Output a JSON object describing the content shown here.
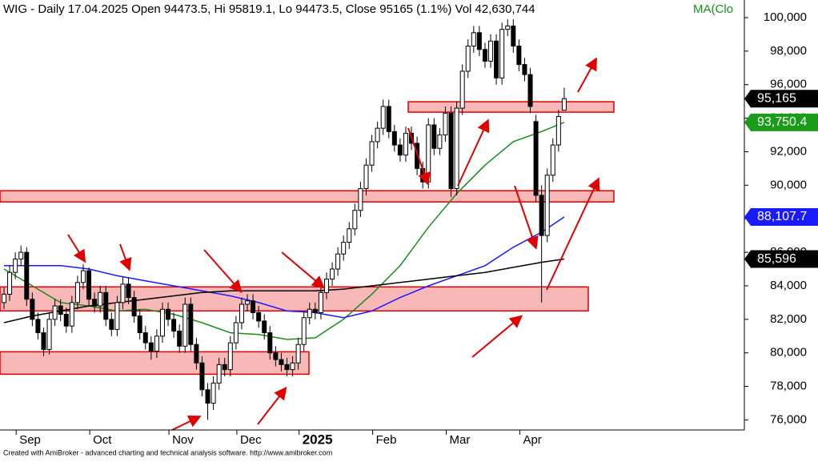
{
  "chart_data": {
    "type": "candlestick",
    "title": "WIG - Daily 17.04.2025 Open 94473.5, Hi 95819.1, Lo 94473.5, Close 95165 (1.1%) Vol 42,630,744",
    "legend_text": "MA(Clo",
    "footer": "Created with AmiBroker - advanced charting and technical analysis software. http://www.amibroker.com",
    "categories": [
      null,
      null,
      null,
      "Sep",
      null,
      null,
      null,
      null,
      null,
      null,
      null,
      null,
      null,
      null,
      null,
      null,
      "Oct",
      null,
      null,
      null,
      null,
      null,
      null,
      null,
      null,
      null,
      null,
      null,
      null,
      null,
      "Nov",
      null,
      null,
      null,
      null,
      null,
      null,
      null,
      null,
      null,
      null,
      null,
      "Dec",
      null,
      null,
      null,
      null,
      null,
      null,
      null,
      null,
      null,
      null,
      "2025",
      null,
      null,
      null,
      null,
      null,
      null,
      null,
      null,
      null,
      null,
      null,
      null,
      "Feb",
      null,
      null,
      null,
      null,
      null,
      null,
      null,
      null,
      null,
      null,
      null,
      null,
      "Mar",
      null,
      null,
      null,
      null,
      null,
      null,
      null,
      null,
      null,
      null,
      null,
      null,
      "Apr",
      null,
      null,
      null,
      null,
      null,
      null,
      null
    ],
    "open": [
      83000,
      83500,
      84800,
      85600,
      86000,
      83200,
      82000,
      81200,
      80200,
      82000,
      82800,
      82300,
      81600,
      83000,
      84200,
      84900,
      83200,
      82800,
      83600,
      82000,
      81400,
      83000,
      84100,
      83300,
      82200,
      81200,
      80600,
      80100,
      81000,
      82600,
      82000,
      81300,
      80400,
      82900,
      80500,
      79400,
      77800,
      77000,
      78200,
      79300,
      79000,
      80600,
      81800,
      82900,
      83100,
      82400,
      81900,
      81200,
      80000,
      79600,
      79300,
      79000,
      79400,
      80500,
      82100,
      82600,
      82400,
      83600,
      84400,
      85000,
      85900,
      86600,
      87400,
      88500,
      89800,
      91200,
      92600,
      93400,
      94700,
      93200,
      92400,
      91800,
      93100,
      92500,
      91000,
      90200,
      93600,
      92200,
      93000,
      94300,
      89800,
      94600,
      96800,
      98300,
      99100,
      98100,
      97400,
      98600,
      96400,
      99300,
      99500,
      98300,
      97200,
      96600,
      93800,
      89400,
      87000,
      90600,
      92400,
      94473.5
    ],
    "high": [
      83900,
      85200,
      86000,
      86400,
      86300,
      83600,
      82400,
      81500,
      82400,
      83200,
      83200,
      82700,
      83400,
      84600,
      85300,
      85100,
      83600,
      84000,
      84000,
      82400,
      83400,
      84500,
      84500,
      83700,
      82600,
      81600,
      81000,
      81400,
      83000,
      83000,
      82400,
      81700,
      83300,
      83300,
      80900,
      79800,
      78200,
      78600,
      79700,
      79700,
      81000,
      82200,
      83300,
      83500,
      83500,
      82800,
      82300,
      81600,
      80400,
      80000,
      79700,
      79800,
      80900,
      82500,
      83000,
      83000,
      84000,
      84800,
      85400,
      86300,
      87000,
      87800,
      88900,
      90200,
      91600,
      93000,
      93800,
      95100,
      95100,
      93600,
      92800,
      93500,
      93500,
      92900,
      91400,
      94000,
      94000,
      93400,
      94700,
      94700,
      95000,
      97200,
      98700,
      99500,
      99500,
      98500,
      99000,
      99000,
      99700,
      99900,
      99900,
      98700,
      97600,
      97000,
      94200,
      90000,
      91000,
      92800,
      94500,
      95819.1
    ],
    "low": [
      82600,
      83100,
      84400,
      85200,
      82800,
      81600,
      80800,
      79800,
      79900,
      81600,
      81900,
      81200,
      81200,
      82600,
      83800,
      82800,
      82400,
      82400,
      81600,
      81000,
      81000,
      82600,
      82900,
      81800,
      80800,
      80200,
      79600,
      79700,
      80600,
      81600,
      80900,
      80000,
      80000,
      80100,
      79000,
      77400,
      76000,
      76600,
      77800,
      78600,
      78600,
      80200,
      81400,
      82500,
      82000,
      81500,
      80800,
      79600,
      79200,
      78900,
      78600,
      78600,
      79000,
      80100,
      81700,
      82000,
      82000,
      83200,
      84000,
      84600,
      85500,
      86200,
      87000,
      88100,
      89400,
      90800,
      92200,
      93000,
      92800,
      92000,
      91400,
      91400,
      92100,
      90600,
      89800,
      89800,
      91800,
      91800,
      92600,
      89300,
      89400,
      94200,
      96400,
      97900,
      97700,
      97000,
      97000,
      96000,
      96000,
      98900,
      97900,
      96800,
      96200,
      94300,
      89000,
      83000,
      86600,
      90200,
      92000,
      94473.5
    ],
    "close": [
      83500,
      84800,
      85600,
      86000,
      83200,
      82000,
      81200,
      80200,
      82000,
      82800,
      82300,
      81600,
      83000,
      84200,
      84900,
      83200,
      82800,
      83600,
      82000,
      81400,
      83000,
      84100,
      83300,
      82200,
      81200,
      80600,
      80100,
      81000,
      82600,
      82000,
      81300,
      80400,
      82900,
      80500,
      79400,
      77800,
      77000,
      78200,
      79300,
      79000,
      80600,
      81800,
      82900,
      83100,
      82400,
      81900,
      81200,
      80000,
      79600,
      79300,
      79000,
      79400,
      80500,
      82100,
      82600,
      82400,
      83600,
      84400,
      85000,
      85900,
      86600,
      87400,
      88500,
      89800,
      91200,
      92600,
      93400,
      94700,
      93200,
      92400,
      91800,
      93100,
      92500,
      91000,
      90200,
      93600,
      92200,
      93000,
      94300,
      89800,
      94600,
      96800,
      98300,
      99100,
      98100,
      97400,
      98600,
      96400,
      99300,
      99500,
      98300,
      97200,
      96600,
      94700,
      89400,
      87000,
      90600,
      92400,
      94100,
      95165
    ],
    "last_price_label": "95,165",
    "series": [
      {
        "name": "MA green",
        "color": "#1a8c1a",
        "x": [
          0,
          5,
          10,
          15,
          20,
          25,
          30,
          35,
          40,
          45,
          50,
          55,
          60,
          65,
          70,
          75,
          80,
          85,
          90,
          95,
          99
        ],
        "values": [
          85000,
          84000,
          83000,
          82800,
          82500,
          82600,
          82300,
          81800,
          81200,
          81100,
          80800,
          80900,
          82000,
          83500,
          85200,
          87500,
          89500,
          91200,
          92600,
          93200,
          93750.4
        ],
        "value_label": "93,750.4"
      },
      {
        "name": "MA blue",
        "color": "#1a1aff",
        "x": [
          0,
          5,
          10,
          15,
          20,
          25,
          30,
          35,
          40,
          45,
          50,
          55,
          60,
          65,
          70,
          75,
          80,
          85,
          90,
          95,
          99
        ],
        "values": [
          85200,
          85200,
          85200,
          85000,
          84600,
          84300,
          84000,
          83700,
          83400,
          83000,
          82500,
          82400,
          82100,
          82500,
          83300,
          84000,
          84600,
          85200,
          86300,
          87200,
          88107.7
        ],
        "value_label": "88,107.7"
      },
      {
        "name": "MA black",
        "color": "#000000",
        "x": [
          0,
          5,
          10,
          15,
          20,
          25,
          30,
          35,
          40,
          45,
          50,
          55,
          60,
          65,
          70,
          75,
          80,
          85,
          90,
          95,
          99
        ],
        "values": [
          81800,
          82200,
          82500,
          82800,
          83000,
          83200,
          83400,
          83600,
          83700,
          83700,
          83700,
          83700,
          83800,
          84000,
          84200,
          84400,
          84600,
          84800,
          85100,
          85400,
          85596
        ],
        "value_label": "85,596"
      }
    ],
    "zones": [
      [
        78725,
        80064
      ],
      [
        82502,
        83936
      ],
      [
        89004,
        89673
      ],
      [
        94359,
        94980
      ]
    ],
    "zone_color": "#f8b8b8",
    "zone_edge": "#e00000",
    "ylim": [
      75400,
      101050
    ],
    "yticks": [
      {
        "value": 76000,
        "label": "76,000"
      },
      {
        "value": 78000,
        "label": "78,000"
      },
      {
        "value": 80000,
        "label": "80,000"
      },
      {
        "value": 82000,
        "label": "82,000"
      },
      {
        "value": 84000,
        "label": "84,000"
      },
      {
        "value": 86000,
        "label": "86,000"
      },
      {
        "value": 88000,
        "label": "88,000"
      },
      {
        "value": 90000,
        "label": "90,000"
      },
      {
        "value": 92000,
        "label": "92,000"
      },
      {
        "value": 94000,
        "label": "94,000"
      },
      {
        "value": 96000,
        "label": "96,000"
      },
      {
        "value": 98000,
        "label": "98,000"
      },
      {
        "value": 100000,
        "label": "100,000"
      }
    ],
    "grid": false
  }
}
